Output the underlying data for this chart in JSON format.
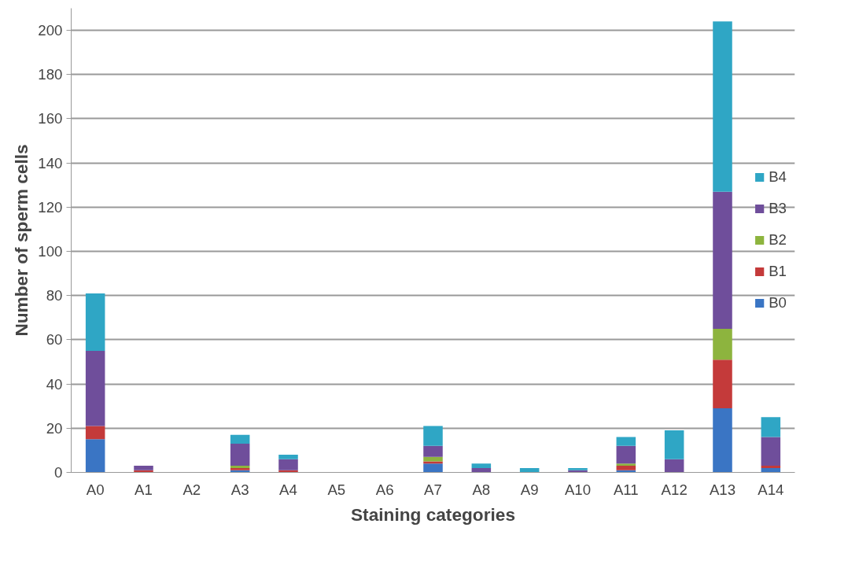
{
  "chart_data": {
    "type": "bar",
    "stacked": true,
    "xlabel": "Staining categories",
    "ylabel": "Number of sperm cells",
    "categories": [
      "A0",
      "A1",
      "A2",
      "A3",
      "A4",
      "A5",
      "A6",
      "A7",
      "A8",
      "A9",
      "A10",
      "A11",
      "A12",
      "A13",
      "A14"
    ],
    "series": [
      {
        "name": "B0",
        "color": "#3a75c4",
        "values": [
          15,
          0,
          0,
          1,
          0,
          0,
          0,
          4,
          0,
          0,
          0,
          1,
          0,
          29,
          2
        ]
      },
      {
        "name": "B1",
        "color": "#c43a3a",
        "values": [
          6,
          1,
          0,
          1,
          1,
          0,
          0,
          1,
          0,
          0,
          0,
          2,
          0,
          22,
          1
        ]
      },
      {
        "name": "B2",
        "color": "#8db43e",
        "values": [
          0,
          0,
          0,
          1,
          0,
          0,
          0,
          2,
          0,
          0,
          0,
          1,
          0,
          14,
          0
        ]
      },
      {
        "name": "B3",
        "color": "#6f4e9b",
        "values": [
          34,
          2,
          0,
          10,
          5,
          0,
          0,
          5,
          2,
          0,
          1,
          8,
          6,
          62,
          13
        ]
      },
      {
        "name": "B4",
        "color": "#2fa6c5",
        "values": [
          26,
          0,
          0,
          4,
          2,
          0,
          0,
          9,
          2,
          2,
          1,
          4,
          13,
          77,
          9
        ]
      }
    ],
    "ylim": [
      0,
      210
    ],
    "yticks": [
      0,
      20,
      40,
      60,
      80,
      100,
      120,
      140,
      160,
      180,
      200
    ],
    "grid": "y",
    "legend": "right"
  }
}
